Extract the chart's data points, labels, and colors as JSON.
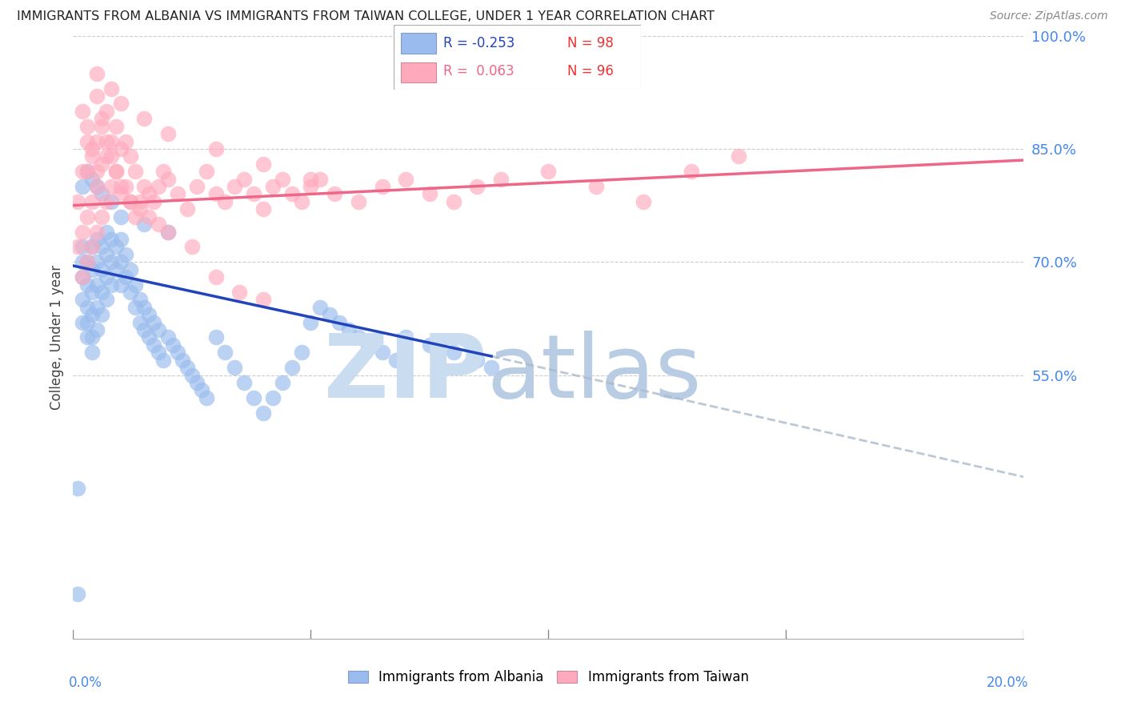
{
  "title": "IMMIGRANTS FROM ALBANIA VS IMMIGRANTS FROM TAIWAN COLLEGE, UNDER 1 YEAR CORRELATION CHART",
  "source": "Source: ZipAtlas.com",
  "ylabel": "College, Under 1 year",
  "legend_labels": [
    "Immigrants from Albania",
    "Immigrants from Taiwan"
  ],
  "legend_R": [
    -0.253,
    0.063
  ],
  "legend_N": [
    98,
    96
  ],
  "xlim": [
    0.0,
    0.2
  ],
  "ylim": [
    0.2,
    1.0
  ],
  "yticks": [
    0.55,
    0.7,
    0.85,
    1.0
  ],
  "ytick_labels": [
    "55.0%",
    "70.0%",
    "85.0%",
    "100.0%"
  ],
  "xticks_bottom_left": "0.0%",
  "xticks_bottom_right": "20.0%",
  "color_albania": "#99BBEE",
  "color_taiwan": "#FFAABC",
  "color_trend_albania": "#2244BB",
  "color_trend_taiwan": "#EE6688",
  "color_axis_labels": "#4488EE",
  "color_grid": "#CCCCCC",
  "watermark_zip_color": "#CADCEF",
  "watermark_atlas_color": "#B8CCE4",
  "trend_albania_x0": 0.0,
  "trend_albania_y0": 0.695,
  "trend_albania_x1": 0.088,
  "trend_albania_y1": 0.575,
  "trend_albania_dash_x0": 0.088,
  "trend_albania_dash_y0": 0.575,
  "trend_albania_dash_x1": 0.2,
  "trend_albania_dash_y1": 0.415,
  "trend_taiwan_x0": 0.0,
  "trend_taiwan_y0": 0.775,
  "trend_taiwan_x1": 0.2,
  "trend_taiwan_y1": 0.835,
  "albania_x": [
    0.001,
    0.001,
    0.002,
    0.002,
    0.002,
    0.002,
    0.002,
    0.003,
    0.003,
    0.003,
    0.003,
    0.003,
    0.004,
    0.004,
    0.004,
    0.004,
    0.004,
    0.004,
    0.005,
    0.005,
    0.005,
    0.005,
    0.005,
    0.006,
    0.006,
    0.006,
    0.006,
    0.007,
    0.007,
    0.007,
    0.007,
    0.008,
    0.008,
    0.008,
    0.009,
    0.009,
    0.01,
    0.01,
    0.01,
    0.011,
    0.011,
    0.012,
    0.012,
    0.013,
    0.013,
    0.014,
    0.014,
    0.015,
    0.015,
    0.016,
    0.016,
    0.017,
    0.017,
    0.018,
    0.018,
    0.019,
    0.02,
    0.021,
    0.022,
    0.023,
    0.024,
    0.025,
    0.026,
    0.027,
    0.028,
    0.03,
    0.032,
    0.034,
    0.036,
    0.038,
    0.04,
    0.042,
    0.044,
    0.046,
    0.048,
    0.05,
    0.052,
    0.054,
    0.056,
    0.058,
    0.06,
    0.062,
    0.065,
    0.068,
    0.07,
    0.075,
    0.08,
    0.085,
    0.088,
    0.002,
    0.003,
    0.004,
    0.005,
    0.006,
    0.008,
    0.01,
    0.015,
    0.02
  ],
  "albania_y": [
    0.26,
    0.4,
    0.62,
    0.65,
    0.68,
    0.7,
    0.72,
    0.6,
    0.62,
    0.64,
    0.67,
    0.7,
    0.58,
    0.6,
    0.63,
    0.66,
    0.69,
    0.72,
    0.61,
    0.64,
    0.67,
    0.7,
    0.73,
    0.63,
    0.66,
    0.69,
    0.72,
    0.65,
    0.68,
    0.71,
    0.74,
    0.67,
    0.7,
    0.73,
    0.69,
    0.72,
    0.67,
    0.7,
    0.73,
    0.68,
    0.71,
    0.66,
    0.69,
    0.64,
    0.67,
    0.62,
    0.65,
    0.61,
    0.64,
    0.6,
    0.63,
    0.59,
    0.62,
    0.58,
    0.61,
    0.57,
    0.6,
    0.59,
    0.58,
    0.57,
    0.56,
    0.55,
    0.54,
    0.53,
    0.52,
    0.6,
    0.58,
    0.56,
    0.54,
    0.52,
    0.5,
    0.52,
    0.54,
    0.56,
    0.58,
    0.62,
    0.64,
    0.63,
    0.62,
    0.61,
    0.6,
    0.59,
    0.58,
    0.57,
    0.6,
    0.59,
    0.58,
    0.57,
    0.56,
    0.8,
    0.82,
    0.81,
    0.8,
    0.79,
    0.78,
    0.76,
    0.75,
    0.74
  ],
  "taiwan_x": [
    0.001,
    0.001,
    0.002,
    0.002,
    0.002,
    0.003,
    0.003,
    0.003,
    0.003,
    0.004,
    0.004,
    0.004,
    0.005,
    0.005,
    0.005,
    0.005,
    0.006,
    0.006,
    0.006,
    0.007,
    0.007,
    0.007,
    0.008,
    0.008,
    0.009,
    0.009,
    0.01,
    0.01,
    0.011,
    0.011,
    0.012,
    0.012,
    0.013,
    0.013,
    0.014,
    0.015,
    0.016,
    0.017,
    0.018,
    0.019,
    0.02,
    0.022,
    0.024,
    0.026,
    0.028,
    0.03,
    0.032,
    0.034,
    0.036,
    0.038,
    0.04,
    0.042,
    0.044,
    0.046,
    0.048,
    0.05,
    0.052,
    0.055,
    0.06,
    0.065,
    0.07,
    0.075,
    0.08,
    0.085,
    0.09,
    0.1,
    0.11,
    0.12,
    0.13,
    0.14,
    0.002,
    0.003,
    0.004,
    0.005,
    0.006,
    0.007,
    0.008,
    0.009,
    0.01,
    0.012,
    0.014,
    0.016,
    0.018,
    0.02,
    0.025,
    0.03,
    0.035,
    0.04,
    0.005,
    0.008,
    0.01,
    0.015,
    0.02,
    0.03,
    0.04,
    0.05
  ],
  "taiwan_y": [
    0.72,
    0.78,
    0.68,
    0.74,
    0.82,
    0.7,
    0.76,
    0.82,
    0.88,
    0.72,
    0.78,
    0.85,
    0.74,
    0.8,
    0.86,
    0.92,
    0.76,
    0.83,
    0.89,
    0.78,
    0.84,
    0.9,
    0.8,
    0.86,
    0.82,
    0.88,
    0.79,
    0.85,
    0.8,
    0.86,
    0.78,
    0.84,
    0.76,
    0.82,
    0.78,
    0.8,
    0.79,
    0.78,
    0.8,
    0.82,
    0.81,
    0.79,
    0.77,
    0.8,
    0.82,
    0.79,
    0.78,
    0.8,
    0.81,
    0.79,
    0.77,
    0.8,
    0.81,
    0.79,
    0.78,
    0.8,
    0.81,
    0.79,
    0.78,
    0.8,
    0.81,
    0.79,
    0.78,
    0.8,
    0.81,
    0.82,
    0.8,
    0.78,
    0.82,
    0.84,
    0.9,
    0.86,
    0.84,
    0.82,
    0.88,
    0.86,
    0.84,
    0.82,
    0.8,
    0.78,
    0.77,
    0.76,
    0.75,
    0.74,
    0.72,
    0.68,
    0.66,
    0.65,
    0.95,
    0.93,
    0.91,
    0.89,
    0.87,
    0.85,
    0.83,
    0.81
  ]
}
